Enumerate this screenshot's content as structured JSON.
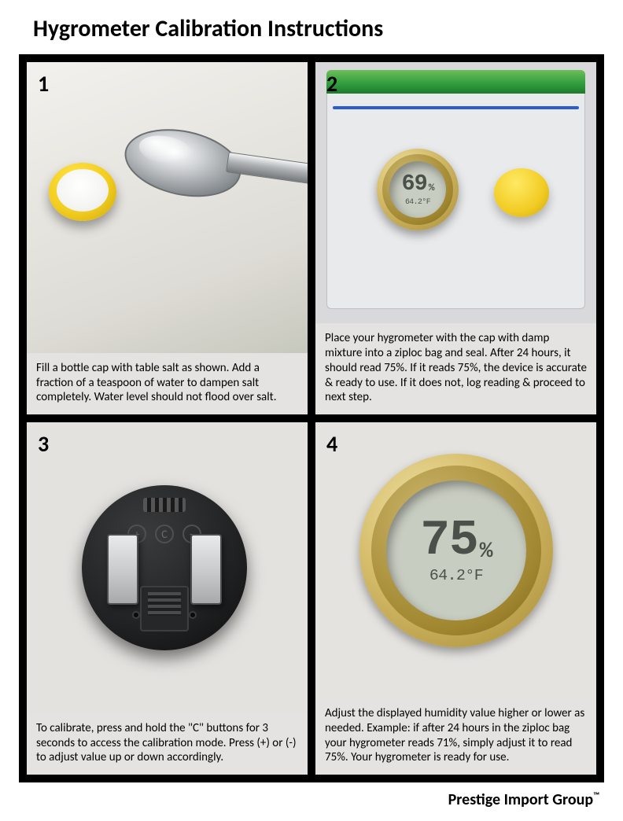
{
  "title": "Hygrometer Calibration Instructions",
  "footer_brand": "Prestige Import Group",
  "footer_tm": "™",
  "panels": [
    {
      "num": "1",
      "caption": "Fill a bottle cap with table salt as shown.  Add a fraction of a teaspoon of water to dampen salt completely.  Water level should not flood over salt."
    },
    {
      "num": "2",
      "caption": "Place your hygrometer with the cap with damp mixture into a ziploc bag and seal.  After 24 hours, it should read 75%.  If it reads 75%, the device is accurate & ready to use.  If it does not, log reading & proceed to next step.",
      "hygro": {
        "humidity": "69",
        "pct": "%",
        "temp": "64.2",
        "deg": "°F"
      }
    },
    {
      "num": "3",
      "caption": "To calibrate, press and hold the \"C\" buttons for 3 seconds to access the calibration mode. Press (+) or (-) to adjust value up or down accordingly.",
      "buttons": {
        "plus": "+",
        "c": "C",
        "minus": "−"
      }
    },
    {
      "num": "4",
      "caption": "Adjust the displayed humidity value higher or lower as needed. Example: if after 24 hours in the ziploc bag your hygrometer reads 71%, simply adjust it to read 75%.  Your hygrometer is ready for use.",
      "hygro": {
        "humidity": "75",
        "pct": "%",
        "temp": "64.2",
        "deg": "°F"
      }
    }
  ],
  "colors": {
    "frame": "#000000",
    "panel_bg": "#e4e3e2",
    "cap_yellow": "#f3cd1e",
    "zip_green": "#2f9c3e",
    "zip_blue": "#2b5dcf",
    "bezel_gold": "#d7bf6e",
    "lcd_bg": "#c8cdc1",
    "arc_green": "#5aa143"
  }
}
